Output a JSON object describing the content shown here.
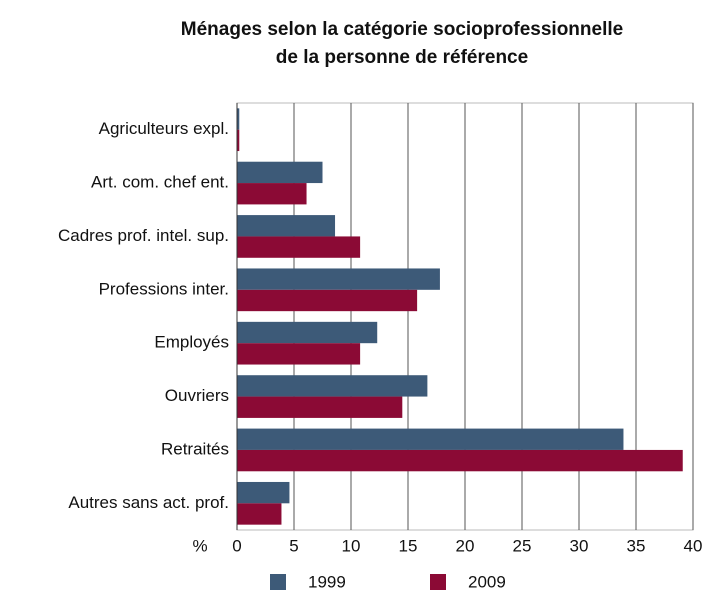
{
  "chart_data": {
    "type": "hbar",
    "title": [
      "Ménages selon la catégorie socioprofessionnelle",
      "de la personne de référence"
    ],
    "xlabel": "%",
    "categories": [
      "Agriculteurs expl.",
      "Art. com. chef ent.",
      "Cadres prof. intel. sup.",
      "Professions inter.",
      "Employés",
      "Ouvriers",
      "Retraités",
      "Autres sans act. prof."
    ],
    "series": [
      {
        "name": "1999",
        "color": "#3d5a78",
        "values": [
          0.2,
          7.5,
          8.6,
          17.8,
          12.3,
          16.7,
          33.9,
          4.6
        ]
      },
      {
        "name": "2009",
        "color": "#8b0a35",
        "values": [
          0.2,
          6.1,
          10.8,
          15.8,
          10.8,
          14.5,
          39.1,
          3.9
        ]
      }
    ],
    "xlim": [
      0,
      40
    ],
    "xticks": [
      0,
      5,
      10,
      15,
      20,
      25,
      30,
      35,
      40
    ],
    "grid": true
  }
}
